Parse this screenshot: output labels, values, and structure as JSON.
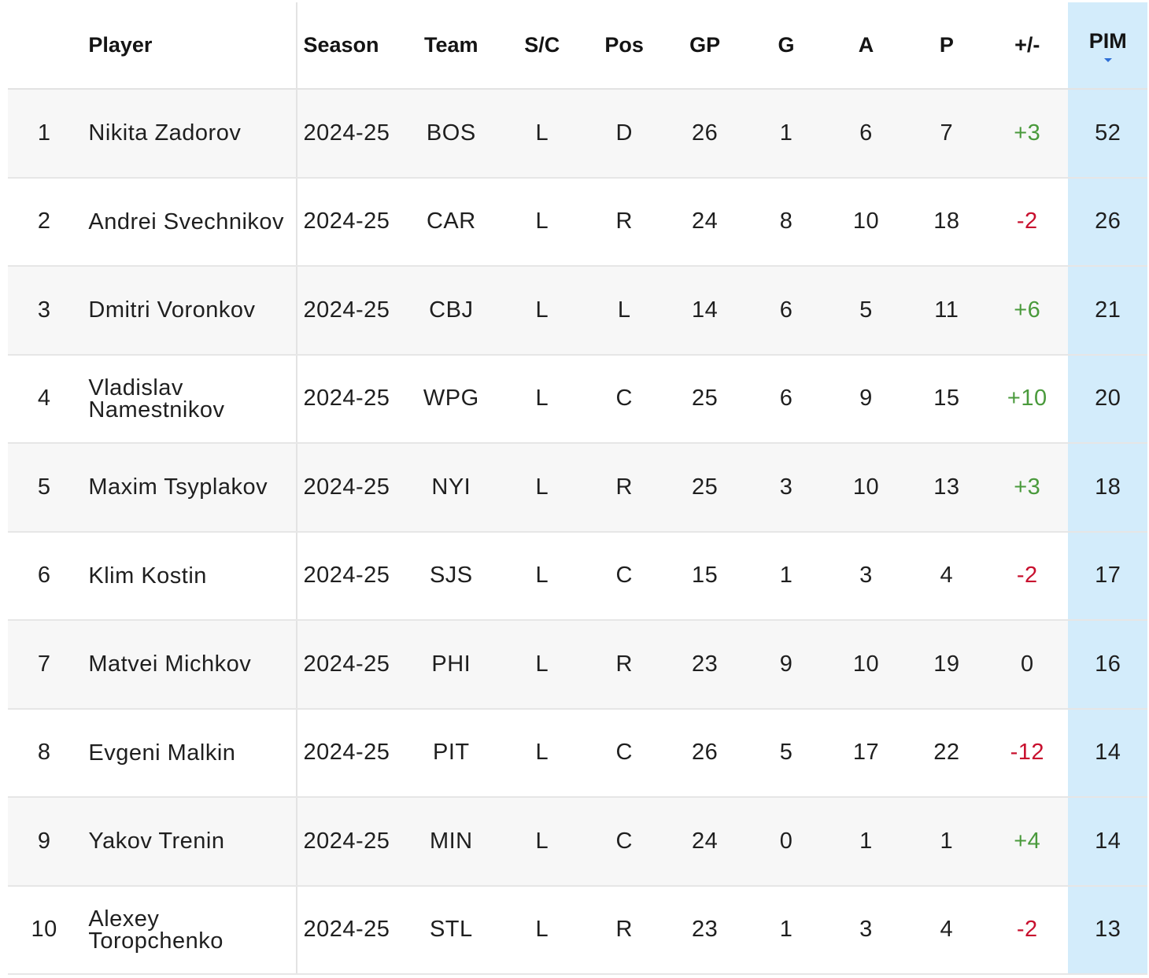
{
  "columns": {
    "rank": "",
    "player": "Player",
    "season": "Season",
    "team": "Team",
    "sc": "S/C",
    "pos": "Pos",
    "gp": "GP",
    "g": "G",
    "a": "A",
    "p": "P",
    "plus_minus": "+/-",
    "pim": "PIM"
  },
  "sort": {
    "column": "PIM",
    "direction": "descending",
    "indicator_color": "#2f6fd6",
    "column_highlight": "#d3ecfb"
  },
  "colors": {
    "positive": "#4a9a3c",
    "negative": "#c8102e"
  },
  "rows": [
    {
      "rank": "1",
      "player": "Nikita Zadorov",
      "season": "2024-25",
      "team": "BOS",
      "sc": "L",
      "pos": "D",
      "gp": "26",
      "g": "1",
      "a": "6",
      "p": "7",
      "pm": "+3",
      "pm_sign": "pos",
      "pim": "52"
    },
    {
      "rank": "2",
      "player": "Andrei Svechnikov",
      "season": "2024-25",
      "team": "CAR",
      "sc": "L",
      "pos": "R",
      "gp": "24",
      "g": "8",
      "a": "10",
      "p": "18",
      "pm": "-2",
      "pm_sign": "neg",
      "pim": "26"
    },
    {
      "rank": "3",
      "player": "Dmitri Voronkov",
      "season": "2024-25",
      "team": "CBJ",
      "sc": "L",
      "pos": "L",
      "gp": "14",
      "g": "6",
      "a": "5",
      "p": "11",
      "pm": "+6",
      "pm_sign": "pos",
      "pim": "21"
    },
    {
      "rank": "4",
      "player": "Vladislav Namestnikov",
      "season": "2024-25",
      "team": "WPG",
      "sc": "L",
      "pos": "C",
      "gp": "25",
      "g": "6",
      "a": "9",
      "p": "15",
      "pm": "+10",
      "pm_sign": "pos",
      "pim": "20"
    },
    {
      "rank": "5",
      "player": "Maxim Tsyplakov",
      "season": "2024-25",
      "team": "NYI",
      "sc": "L",
      "pos": "R",
      "gp": "25",
      "g": "3",
      "a": "10",
      "p": "13",
      "pm": "+3",
      "pm_sign": "pos",
      "pim": "18"
    },
    {
      "rank": "6",
      "player": "Klim Kostin",
      "season": "2024-25",
      "team": "SJS",
      "sc": "L",
      "pos": "C",
      "gp": "15",
      "g": "1",
      "a": "3",
      "p": "4",
      "pm": "-2",
      "pm_sign": "neg",
      "pim": "17"
    },
    {
      "rank": "7",
      "player": "Matvei Michkov",
      "season": "2024-25",
      "team": "PHI",
      "sc": "L",
      "pos": "R",
      "gp": "23",
      "g": "9",
      "a": "10",
      "p": "19",
      "pm": "0",
      "pm_sign": "zero",
      "pim": "16"
    },
    {
      "rank": "8",
      "player": "Evgeni Malkin",
      "season": "2024-25",
      "team": "PIT",
      "sc": "L",
      "pos": "C",
      "gp": "26",
      "g": "5",
      "a": "17",
      "p": "22",
      "pm": "-12",
      "pm_sign": "neg",
      "pim": "14"
    },
    {
      "rank": "9",
      "player": "Yakov Trenin",
      "season": "2024-25",
      "team": "MIN",
      "sc": "L",
      "pos": "C",
      "gp": "24",
      "g": "0",
      "a": "1",
      "p": "1",
      "pm": "+4",
      "pm_sign": "pos",
      "pim": "14"
    },
    {
      "rank": "10",
      "player": "Alexey Toropchenko",
      "season": "2024-25",
      "team": "STL",
      "sc": "L",
      "pos": "R",
      "gp": "23",
      "g": "1",
      "a": "3",
      "p": "4",
      "pm": "-2",
      "pm_sign": "neg",
      "pim": "13"
    }
  ]
}
